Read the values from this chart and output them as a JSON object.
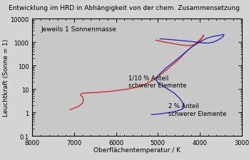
{
  "title": "Entwicklung im HRD in Abhängigkeit von der chem. Zusammensetzung",
  "xlabel": "Oberflächentemperatur / K",
  "ylabel": "Leuchtkraft (Sonne = 1)",
  "annotation1": "Jeweils 1 Sonnenmasse",
  "label_red": "1/10 % Anteil\nschwerer Elemente",
  "label_blue": "2 % Anteil\nschwerer Elemente",
  "xlim": [
    8000,
    3000
  ],
  "ylim": [
    0.1,
    10000
  ],
  "background_color": "#c8c8c8",
  "fig_background": "#d4d4d4",
  "red_color": "#cc2222",
  "blue_color": "#2222bb",
  "title_fontsize": 6.5,
  "label_fontsize": 6.5,
  "tick_fontsize": 6.0,
  "annot_fontsize": 6.5,
  "red_track": [
    [
      7100,
      1.3
    ],
    [
      6900,
      1.8
    ],
    [
      6800,
      2.5
    ],
    [
      6780,
      3.5
    ],
    [
      6800,
      4.5
    ],
    [
      6850,
      5.5
    ],
    [
      6820,
      6.5
    ],
    [
      6700,
      6.8
    ],
    [
      6500,
      7.0
    ],
    [
      6300,
      7.5
    ],
    [
      6100,
      8.0
    ],
    [
      5900,
      9.0
    ],
    [
      5700,
      10.0
    ],
    [
      5500,
      12.0
    ],
    [
      5300,
      16.0
    ],
    [
      5100,
      25.0
    ],
    [
      4900,
      45.0
    ],
    [
      4700,
      90.0
    ],
    [
      4500,
      180.0
    ],
    [
      4300,
      420.0
    ],
    [
      4100,
      850.0
    ],
    [
      3980,
      1300.0
    ],
    [
      3920,
      1700.0
    ],
    [
      3910,
      2000.0
    ],
    [
      3940,
      1600.0
    ],
    [
      3980,
      1200.0
    ],
    [
      4050,
      900.0
    ],
    [
      4150,
      750.0
    ],
    [
      4300,
      700.0
    ],
    [
      4500,
      780.0
    ],
    [
      4700,
      900.0
    ],
    [
      4900,
      1050.0
    ],
    [
      5050,
      1200.0
    ]
  ],
  "blue_track": [
    [
      5150,
      0.82
    ],
    [
      5050,
      0.84
    ],
    [
      4950,
      0.87
    ],
    [
      4850,
      0.92
    ],
    [
      4750,
      0.98
    ],
    [
      4650,
      1.05
    ],
    [
      4550,
      1.15
    ],
    [
      4450,
      1.3
    ],
    [
      4380,
      1.55
    ],
    [
      4380,
      2.0
    ],
    [
      4420,
      2.8
    ],
    [
      4480,
      4.0
    ],
    [
      4600,
      6.5
    ],
    [
      4800,
      11.0
    ],
    [
      5000,
      18.0
    ],
    [
      5050,
      28.0
    ],
    [
      4950,
      45.0
    ],
    [
      4800,
      80.0
    ],
    [
      4600,
      150.0
    ],
    [
      4400,
      300.0
    ],
    [
      4200,
      600.0
    ],
    [
      4000,
      1000.0
    ],
    [
      3850,
      1400.0
    ],
    [
      3700,
      1700.0
    ],
    [
      3550,
      1900.0
    ],
    [
      3420,
      2100.0
    ],
    [
      3430,
      1800.0
    ],
    [
      3480,
      1500.0
    ],
    [
      3570,
      1200.0
    ],
    [
      3680,
      980.0
    ],
    [
      3800,
      900.0
    ],
    [
      3920,
      920.0
    ],
    [
      4050,
      980.0
    ],
    [
      4250,
      1080.0
    ],
    [
      4500,
      1180.0
    ],
    [
      4750,
      1300.0
    ],
    [
      4950,
      1380.0
    ]
  ]
}
